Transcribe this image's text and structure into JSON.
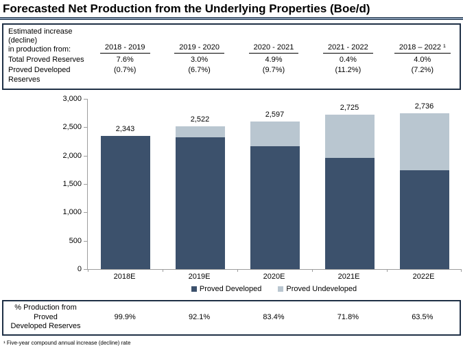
{
  "title": "Forecasted Net Production from the Underlying Properties (Boe/d)",
  "top_table": {
    "caption_line1": "Estimated increase (decline)",
    "caption_line2": "in production from:",
    "columns": [
      "2018 - 2019",
      "2019 - 2020",
      "2020 - 2021",
      "2021 - 2022",
      "2018 – 2022 ¹"
    ],
    "rows": [
      {
        "label": "Total Proved Reserves",
        "values": [
          "7.6%",
          "3.0%",
          "4.9%",
          "0.4%",
          "4.0%"
        ]
      },
      {
        "label": "Proved Developed Reserves",
        "values": [
          "(0.7%)",
          "(6.7%)",
          "(9.7%)",
          "(11.2%)",
          "(7.2%)"
        ]
      }
    ]
  },
  "chart_data": {
    "type": "bar",
    "stacked": true,
    "title": "",
    "xlabel": "",
    "ylabel": "",
    "categories": [
      "2018E",
      "2019E",
      "2020E",
      "2021E",
      "2022E"
    ],
    "series": [
      {
        "name": "Proved Developed",
        "color": "#3c516c",
        "values": [
          2341,
          2323,
          2166,
          1957,
          1737
        ]
      },
      {
        "name": "Proved Undeveloped",
        "color": "#b9c6d0",
        "values": [
          2,
          199,
          431,
          768,
          999
        ]
      }
    ],
    "totals": [
      2343,
      2522,
      2597,
      2725,
      2736
    ],
    "total_labels": [
      "2,343",
      "2,522",
      "2,597",
      "2,725",
      "2,736"
    ],
    "ylim": [
      0,
      3000
    ],
    "ytick_labels": [
      "0",
      "500",
      "1,000",
      "1,500",
      "2,000",
      "2,500",
      "3,000"
    ],
    "grid": false,
    "legend_position": "bottom"
  },
  "bottom_table": {
    "label_line1": "% Production from Proved",
    "label_line2": "Developed Reserves",
    "values": [
      "99.9%",
      "92.1%",
      "83.4%",
      "71.8%",
      "63.5%"
    ]
  },
  "footnote": "¹ Five-year compound annual increase (decline) rate",
  "colors": {
    "proved_developed": "#3c516c",
    "proved_undeveloped": "#b9c6d0",
    "panel_border": "#1e2f45",
    "axis": "#9c9c9c"
  }
}
